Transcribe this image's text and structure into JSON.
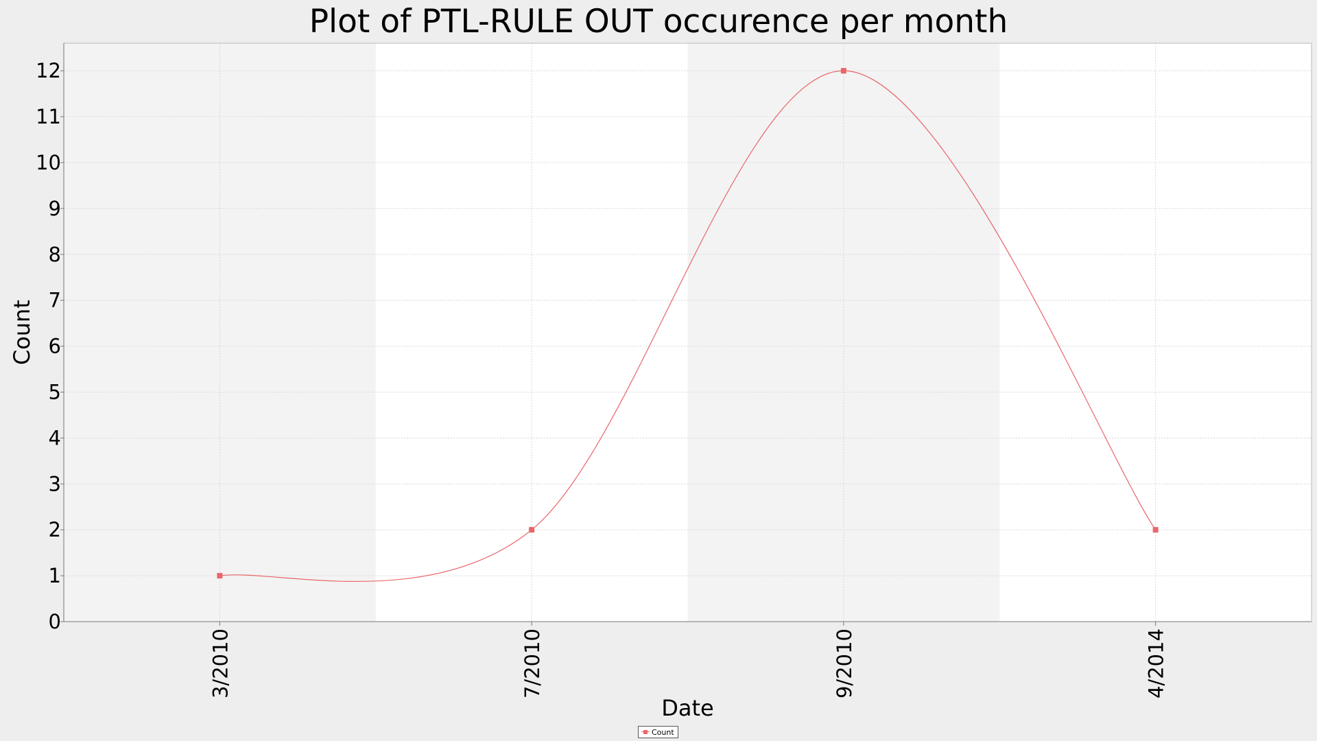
{
  "chart_data": {
    "type": "line",
    "title": "Plot of PTL-RULE OUT occurence per month",
    "xlabel": "Date",
    "ylabel": "Count",
    "categories": [
      "3/2010",
      "7/2010",
      "9/2010",
      "4/2014"
    ],
    "series": [
      {
        "name": "Count",
        "values": [
          1,
          2,
          12,
          2
        ],
        "color": "#e8666a"
      }
    ],
    "ylim": [
      0,
      12.6
    ],
    "yticks": [
      0,
      1,
      2,
      3,
      4,
      5,
      6,
      7,
      8,
      9,
      10,
      11,
      12
    ],
    "grid": true,
    "curve": "smooth",
    "legend_position": "bottom-center",
    "colors": {
      "plot_band_alt": "#f3f3f3",
      "plot_band": "#ffffff",
      "grid": "#d8d8d8",
      "axis": "#777777"
    }
  }
}
